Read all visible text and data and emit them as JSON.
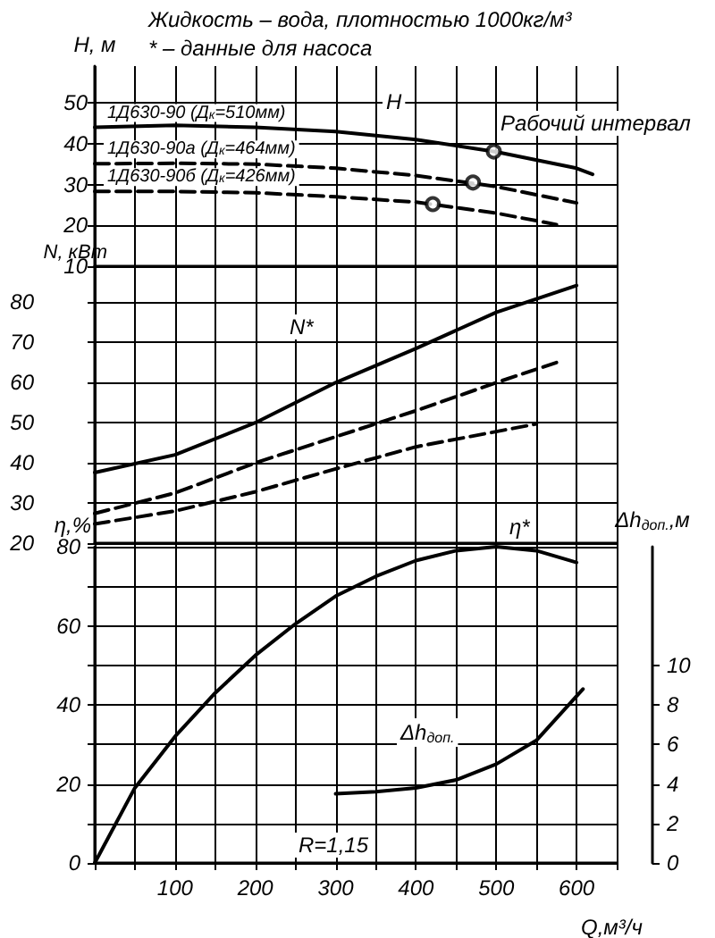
{
  "chart_data": [
    {
      "type": "line",
      "title": "Жидкость – вода, плотностью 1000кг/м³",
      "subtitle": "* – данные для насоса",
      "ylabel": "H, м",
      "xlim": [
        0,
        650
      ],
      "xticks": [
        {
          "value": 0,
          "label": null
        },
        {
          "value": 50,
          "label": null
        },
        {
          "value": 100,
          "label": null
        },
        {
          "value": 150,
          "label": null
        },
        {
          "value": 200,
          "label": null
        },
        {
          "value": 250,
          "label": null
        },
        {
          "value": 300,
          "label": null
        },
        {
          "value": 350,
          "label": null
        },
        {
          "value": 400,
          "label": null
        },
        {
          "value": 450,
          "label": null
        },
        {
          "value": 500,
          "label": null
        },
        {
          "value": 550,
          "label": null
        },
        {
          "value": 600,
          "label": null
        },
        {
          "value": 650,
          "label": null
        }
      ],
      "ylim": [
        10,
        59
      ],
      "yticks": [
        10,
        20,
        30,
        40,
        50
      ],
      "grid": true,
      "tick_labels": "y",
      "annotations": [
        "H",
        "Рабочий интервал"
      ],
      "series": [
        {
          "name": "1Д630-90 (Д$_{к}$=510мм)",
          "color": "#000000",
          "line_style": "solid",
          "marker": "none",
          "x": [
            0,
            100,
            200,
            300,
            400,
            500,
            600,
            620
          ],
          "values": [
            44,
            44.5,
            44,
            43,
            41,
            38,
            34,
            32.5
          ]
        },
        {
          "name": "1Д630-90а (Д$_{к}$=464мм)",
          "color": "#000000",
          "line_style": "dashed",
          "marker": "none",
          "x": [
            0,
            100,
            200,
            300,
            400,
            500,
            600
          ],
          "values": [
            35.1,
            35.2,
            35,
            34,
            32.2,
            29.5,
            25.5
          ]
        },
        {
          "name": "1Д630-90б (Д$_{к}$=426мм)",
          "color": "#000000",
          "line_style": "dashed",
          "marker": "none",
          "x": [
            0,
            100,
            200,
            300,
            400,
            500,
            575
          ],
          "values": [
            28.3,
            28.3,
            28,
            27,
            25.7,
            23,
            20.2
          ]
        },
        {
          "type": "scatter",
          "color": "#000000",
          "marker": "circle",
          "x": [
            497,
            471,
            421
          ],
          "values": [
            38.1,
            30.5,
            25.2
          ]
        }
      ]
    },
    {
      "type": "line",
      "ylabel": "N, кВт",
      "xlim": [
        0,
        650
      ],
      "xticks": [
        {
          "value": 0,
          "label": null
        },
        {
          "value": 50,
          "label": null
        },
        {
          "value": 100,
          "label": null
        },
        {
          "value": 150,
          "label": null
        },
        {
          "value": 200,
          "label": null
        },
        {
          "value": 250,
          "label": null
        },
        {
          "value": 300,
          "label": null
        },
        {
          "value": 350,
          "label": null
        },
        {
          "value": 400,
          "label": null
        },
        {
          "value": 450,
          "label": null
        },
        {
          "value": 500,
          "label": null
        },
        {
          "value": 550,
          "label": null
        },
        {
          "value": 600,
          "label": null
        },
        {
          "value": 650,
          "label": null
        }
      ],
      "ylim": [
        20,
        89
      ],
      "yticks": [
        20,
        30,
        40,
        50,
        60,
        70,
        80
      ],
      "grid": true,
      "tick_labels": "y",
      "annotations": [
        "N*"
      ],
      "series": [
        {
          "color": "#000000",
          "line_style": "solid",
          "marker": "none",
          "x": [
            0,
            100,
            200,
            300,
            400,
            500,
            600
          ],
          "values": [
            37.6,
            42,
            50,
            60,
            68.5,
            77.5,
            84.2
          ]
        },
        {
          "color": "#000000",
          "line_style": "dashed",
          "marker": "none",
          "x": [
            0,
            100,
            200,
            300,
            400,
            500,
            575
          ],
          "values": [
            27.4,
            32.5,
            40,
            46.5,
            53,
            60,
            65
          ]
        },
        {
          "color": "#000000",
          "line_style": "dashed",
          "marker": "none",
          "x": [
            0,
            100,
            200,
            300,
            400,
            500,
            550
          ],
          "values": [
            24.8,
            28,
            32.8,
            38.5,
            44,
            47.8,
            49.7
          ]
        }
      ]
    },
    {
      "type": "line",
      "ylabel": "η,%",
      "y2label": "Δh$_{доп.}$,м",
      "xlabel": "Q,м³/ч",
      "xlim": [
        0,
        650
      ],
      "xticks": [
        {
          "value": 0,
          "label": null
        },
        {
          "value": 50,
          "label": null
        },
        100,
        {
          "value": 150,
          "label": null
        },
        200,
        {
          "value": 250,
          "label": null
        },
        300,
        {
          "value": 350,
          "label": null
        },
        400,
        {
          "value": 450,
          "label": null
        },
        500,
        {
          "value": 550,
          "label": null
        },
        600,
        {
          "value": 650,
          "label": null
        }
      ],
      "ylim": [
        0,
        80
      ],
      "yticks": [
        0,
        {
          "value": 10,
          "label": null
        },
        20,
        {
          "value": 30,
          "label": null
        },
        40,
        {
          "value": 50,
          "label": null
        },
        60,
        {
          "value": 70,
          "label": null
        },
        80
      ],
      "y2lim": [
        0,
        16
      ],
      "y2ticks": [
        0,
        2,
        4,
        6,
        8,
        10
      ],
      "grid": true,
      "annotations": [
        "η*",
        "Δh$_{доп.}$",
        "R=1,15"
      ],
      "series": [
        {
          "color": "#000000",
          "line_style": "solid",
          "marker": "none",
          "x": [
            0,
            50,
            100,
            150,
            200,
            250,
            300,
            350,
            400,
            450,
            500,
            550,
            600
          ],
          "values": [
            0,
            19,
            32,
            43,
            52.5,
            60.5,
            67.5,
            72.5,
            76.5,
            79,
            80,
            79,
            76
          ]
        },
        {
          "color": "#000000",
          "line_style": "solid",
          "marker": "none",
          "axis": "y2",
          "x": [
            300,
            350,
            400,
            450,
            500,
            550,
            608
          ],
          "values": [
            3.5,
            3.6,
            3.8,
            4.2,
            5,
            6.2,
            8.8
          ]
        }
      ]
    }
  ]
}
